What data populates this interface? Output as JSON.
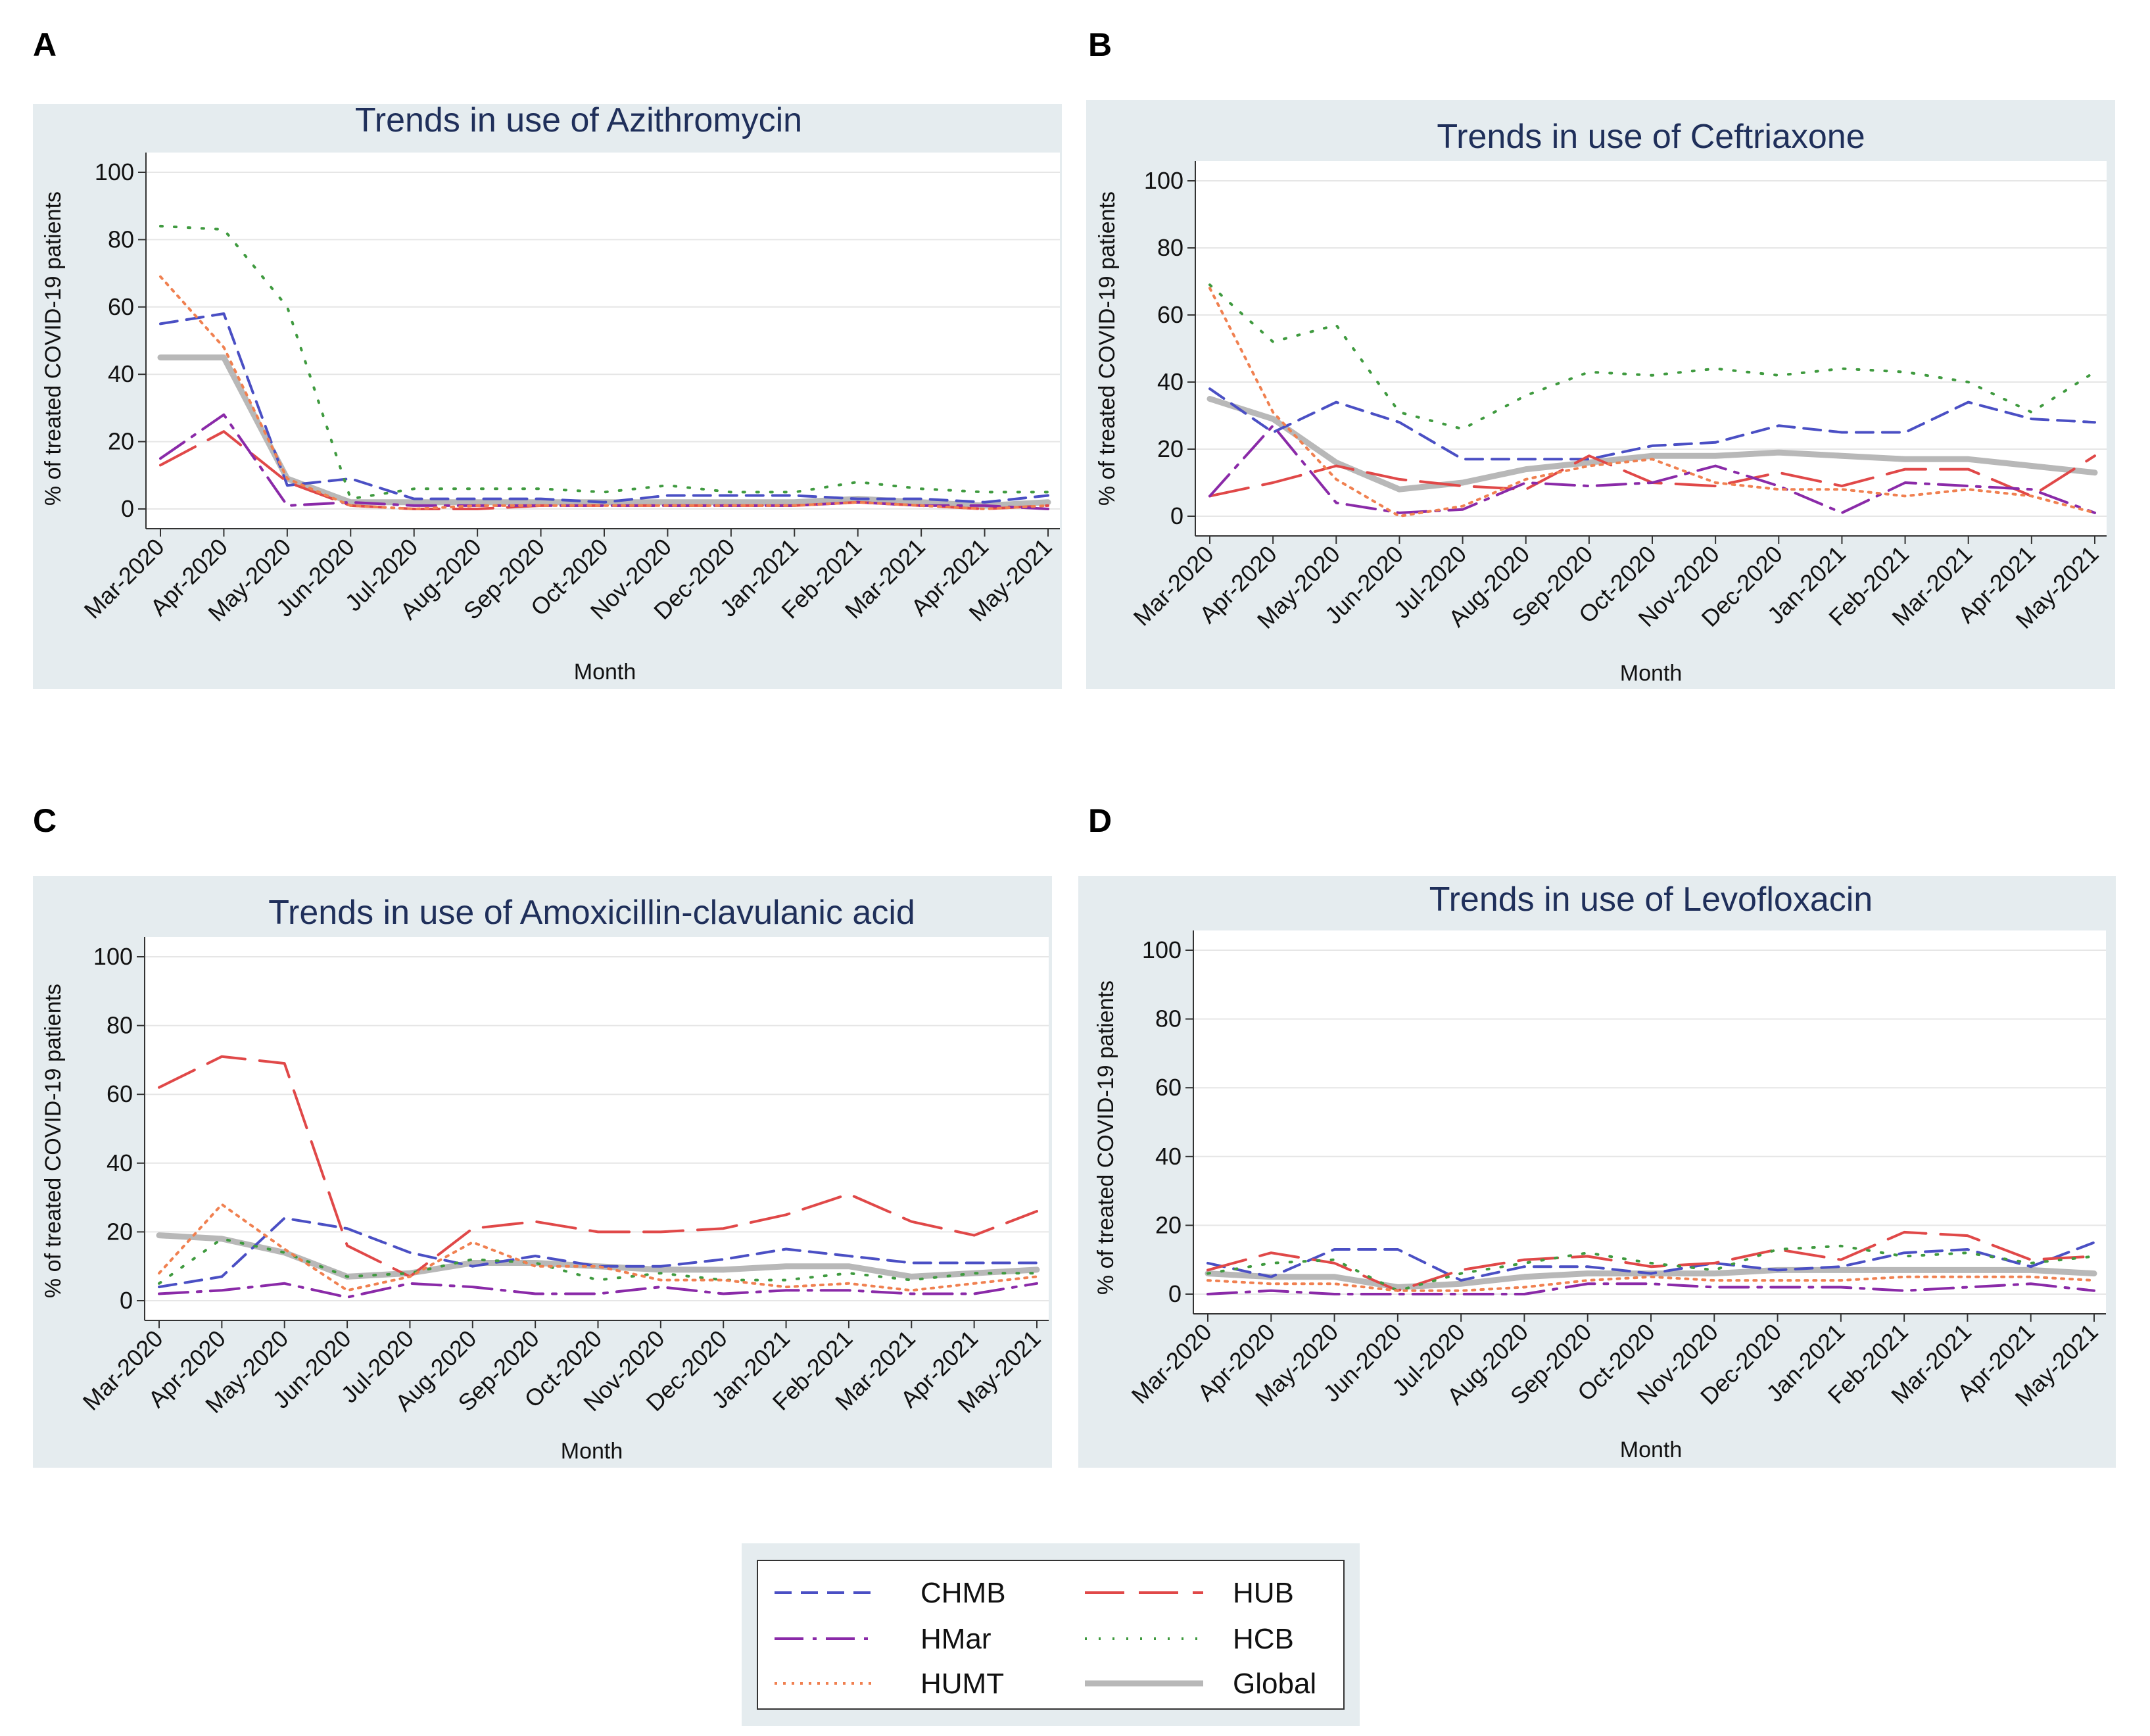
{
  "panel_labels": [
    "A",
    "B",
    "C",
    "D"
  ],
  "legend": {
    "entries": [
      {
        "name": "CHMB",
        "color": "#4a4fc4",
        "dash": "dash"
      },
      {
        "name": "HUB",
        "color": "#e04848",
        "dash": "longdash"
      },
      {
        "name": "HMar",
        "color": "#8a2aa8",
        "dash": "dashdot"
      },
      {
        "name": "HCB",
        "color": "#3f9a3f",
        "dash": "dot-spaced"
      },
      {
        "name": "HUMT",
        "color": "#f08050",
        "dash": "dot"
      },
      {
        "name": "Global",
        "color": "#b8b8b8",
        "dash": "solid"
      }
    ]
  },
  "chart_data": [
    {
      "type": "line",
      "title": "Trends in use of  Azithromycin",
      "xlabel": "Month",
      "ylabel": "% of treated COVID-19 patients",
      "ylim": [
        0,
        100
      ],
      "yticks": [
        0,
        20,
        40,
        60,
        80,
        100
      ],
      "categories": [
        "Mar-2020",
        "Apr-2020",
        "May-2020",
        "Jun-2020",
        "Jul-2020",
        "Aug-2020",
        "Sep-2020",
        "Oct-2020",
        "Nov-2020",
        "Dec-2020",
        "Jan-2021",
        "Feb-2021",
        "Mar-2021",
        "Apr-2021",
        "May-2021"
      ],
      "series": [
        {
          "name": "CHMB",
          "values": [
            55,
            58,
            7,
            9,
            3,
            3,
            3,
            2,
            4,
            4,
            4,
            3,
            3,
            2,
            4
          ]
        },
        {
          "name": "HUB",
          "values": [
            13,
            23,
            8,
            1,
            0,
            0,
            1,
            1,
            1,
            1,
            1,
            2,
            1,
            0,
            1
          ]
        },
        {
          "name": "HMar",
          "values": [
            15,
            28,
            1,
            2,
            1,
            1,
            1,
            1,
            1,
            1,
            1,
            2,
            1,
            1,
            0
          ]
        },
        {
          "name": "HCB",
          "values": [
            84,
            83,
            60,
            3,
            6,
            6,
            6,
            5,
            7,
            5,
            5,
            8,
            6,
            5,
            5
          ]
        },
        {
          "name": "HUMT",
          "values": [
            69,
            48,
            9,
            1,
            0,
            1,
            1,
            1,
            1,
            1,
            1,
            2,
            1,
            0,
            1
          ]
        },
        {
          "name": "Global",
          "values": [
            45,
            45,
            9,
            2,
            2,
            2,
            2,
            2,
            2,
            2,
            2,
            3,
            2,
            1,
            2
          ]
        }
      ]
    },
    {
      "type": "line",
      "title": "Trends in use of  Ceftriaxone",
      "xlabel": "Month",
      "ylabel": "% of treated COVID-19 patients",
      "ylim": [
        0,
        100
      ],
      "yticks": [
        0,
        20,
        40,
        60,
        80,
        100
      ],
      "categories": [
        "Mar-2020",
        "Apr-2020",
        "May-2020",
        "Jun-2020",
        "Jul-2020",
        "Aug-2020",
        "Sep-2020",
        "Oct-2020",
        "Nov-2020",
        "Dec-2020",
        "Jan-2021",
        "Feb-2021",
        "Mar-2021",
        "Apr-2021",
        "May-2021"
      ],
      "series": [
        {
          "name": "CHMB",
          "values": [
            38,
            25,
            34,
            28,
            17,
            17,
            17,
            21,
            22,
            27,
            25,
            25,
            34,
            29,
            28
          ]
        },
        {
          "name": "HUB",
          "values": [
            6,
            10,
            15,
            11,
            9,
            8,
            18,
            10,
            9,
            13,
            9,
            14,
            14,
            6,
            18
          ]
        },
        {
          "name": "HMar",
          "values": [
            6,
            27,
            4,
            1,
            2,
            10,
            9,
            10,
            15,
            9,
            1,
            10,
            9,
            8,
            1
          ]
        },
        {
          "name": "HCB",
          "values": [
            69,
            52,
            57,
            31,
            26,
            36,
            43,
            42,
            44,
            42,
            44,
            43,
            40,
            31,
            43
          ]
        },
        {
          "name": "HUMT",
          "values": [
            68,
            31,
            11,
            0,
            3,
            11,
            15,
            17,
            10,
            8,
            8,
            6,
            8,
            6,
            1
          ]
        },
        {
          "name": "Global",
          "values": [
            35,
            29,
            16,
            8,
            10,
            14,
            16,
            18,
            18,
            19,
            18,
            17,
            17,
            15,
            13
          ]
        }
      ]
    },
    {
      "type": "line",
      "title": "Trends in use of Amoxicillin-clavulanic acid",
      "xlabel": "Month",
      "ylabel": "% of treated COVID-19 patients",
      "ylim": [
        0,
        100
      ],
      "yticks": [
        0,
        20,
        40,
        60,
        80,
        100
      ],
      "categories": [
        "Mar-2020",
        "Apr-2020",
        "May-2020",
        "Jun-2020",
        "Jul-2020",
        "Aug-2020",
        "Sep-2020",
        "Oct-2020",
        "Nov-2020",
        "Dec-2020",
        "Jan-2021",
        "Feb-2021",
        "Mar-2021",
        "Apr-2021",
        "May-2021"
      ],
      "series": [
        {
          "name": "CHMB",
          "values": [
            4,
            7,
            24,
            21,
            14,
            10,
            13,
            10,
            10,
            12,
            15,
            13,
            11,
            11,
            11
          ]
        },
        {
          "name": "HUB",
          "values": [
            62,
            71,
            69,
            16,
            7,
            21,
            23,
            20,
            20,
            21,
            25,
            31,
            23,
            19,
            26
          ]
        },
        {
          "name": "HMar",
          "values": [
            2,
            3,
            5,
            1,
            5,
            4,
            2,
            2,
            4,
            2,
            3,
            3,
            2,
            2,
            5
          ]
        },
        {
          "name": "HCB",
          "values": [
            5,
            18,
            14,
            7,
            8,
            12,
            11,
            6,
            8,
            6,
            6,
            8,
            6,
            8,
            8
          ]
        },
        {
          "name": "HUMT",
          "values": [
            8,
            28,
            15,
            3,
            7,
            17,
            10,
            10,
            6,
            6,
            4,
            5,
            3,
            5,
            7
          ]
        },
        {
          "name": "Global",
          "values": [
            19,
            18,
            14,
            7,
            8,
            11,
            11,
            10,
            9,
            9,
            10,
            10,
            7,
            8,
            9
          ]
        }
      ]
    },
    {
      "type": "line",
      "title": "Trends in use of Levofloxacin",
      "xlabel": "Month",
      "ylabel": "% of treated COVID-19 patients",
      "ylim": [
        0,
        100
      ],
      "yticks": [
        0,
        20,
        40,
        60,
        80,
        100
      ],
      "categories": [
        "Mar-2020",
        "Apr-2020",
        "May-2020",
        "Jun-2020",
        "Jul-2020",
        "Aug-2020",
        "Sep-2020",
        "Oct-2020",
        "Nov-2020",
        "Dec-2020",
        "Jan-2021",
        "Feb-2021",
        "Mar-2021",
        "Apr-2021",
        "May-2021"
      ],
      "series": [
        {
          "name": "CHMB",
          "values": [
            9,
            5,
            13,
            13,
            4,
            8,
            8,
            6,
            9,
            7,
            8,
            12,
            13,
            8,
            15
          ]
        },
        {
          "name": "HUB",
          "values": [
            7,
            12,
            9,
            1,
            7,
            10,
            11,
            8,
            9,
            13,
            10,
            18,
            17,
            10,
            11
          ]
        },
        {
          "name": "HMar",
          "values": [
            0,
            1,
            0,
            0,
            0,
            0,
            3,
            3,
            2,
            2,
            2,
            1,
            2,
            3,
            1
          ]
        },
        {
          "name": "HCB",
          "values": [
            6,
            9,
            10,
            1,
            6,
            9,
            12,
            9,
            7,
            13,
            14,
            11,
            12,
            9,
            11
          ]
        },
        {
          "name": "HUMT",
          "values": [
            4,
            3,
            3,
            1,
            1,
            2,
            4,
            5,
            4,
            4,
            4,
            5,
            5,
            5,
            4
          ]
        },
        {
          "name": "Global",
          "values": [
            6,
            5,
            5,
            2,
            3,
            5,
            6,
            6,
            6,
            7,
            7,
            7,
            7,
            7,
            6
          ]
        }
      ]
    }
  ]
}
